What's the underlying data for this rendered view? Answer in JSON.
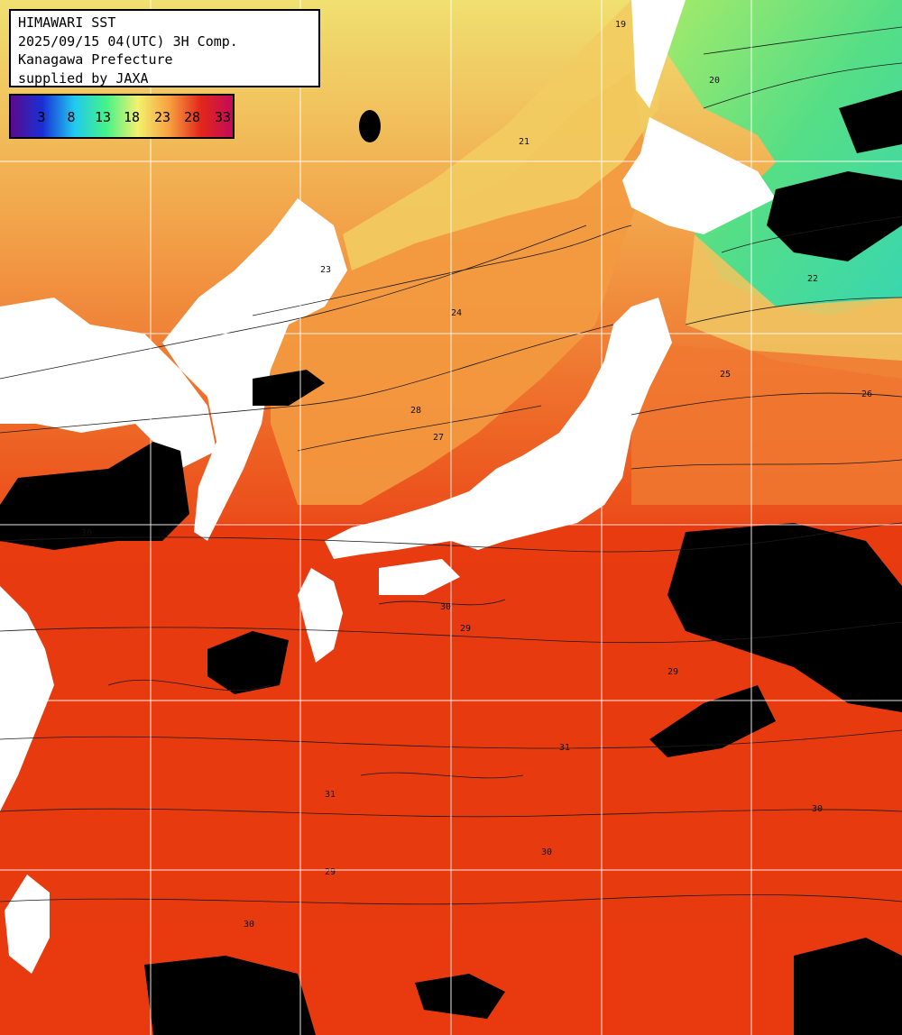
{
  "title": {
    "line1": "HIMAWARI SST",
    "line2": "2025/09/15 04(UTC) 3H Comp.",
    "line3": "Kanagawa Prefecture",
    "line4": "supplied by JAXA"
  },
  "legend": {
    "ticks": [
      "3",
      "8",
      "13",
      "18",
      "23",
      "28",
      "33"
    ],
    "colors": [
      "#5b0a8c",
      "#1a2fd6",
      "#21c9f0",
      "#44f28a",
      "#f2f26e",
      "#f7a040",
      "#e3261a",
      "#c40a5a"
    ]
  },
  "isotherm_labels": [
    "19",
    "20",
    "21",
    "22",
    "23",
    "24",
    "25",
    "26",
    "27",
    "28",
    "29",
    "30",
    "31"
  ],
  "colors": {
    "land": "#ffffff",
    "cloud": "#000000",
    "grid": "#ffffff",
    "sea_cold": "#5ee07a",
    "sea_mid": "#f4b258",
    "sea_warm": "#ea3d12"
  }
}
